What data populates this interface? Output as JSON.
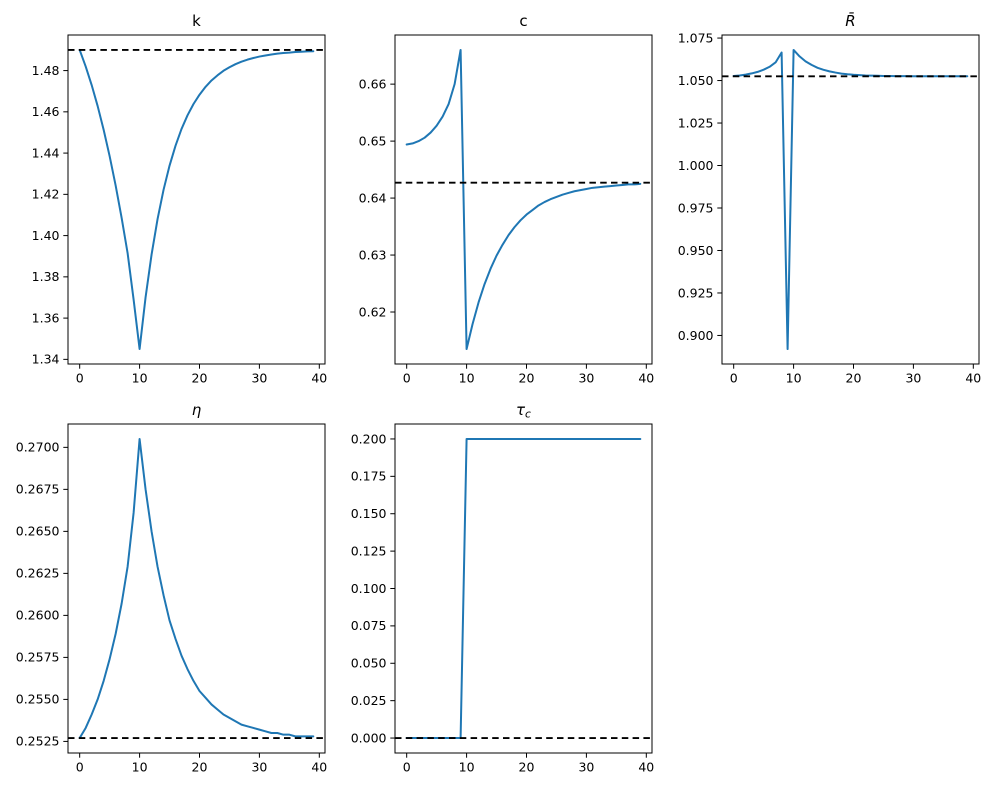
{
  "figure": {
    "background": "#ffffff",
    "rows": 2,
    "cols": 3,
    "empty_cells": 1
  },
  "colors": {
    "line": "#1f77b4",
    "dashed": "#000000",
    "axis": "#000000",
    "text": "#000000",
    "background": "#ffffff"
  },
  "chart_data": [
    {
      "id": "k",
      "type": "line",
      "title": {
        "text": "k",
        "sub": "",
        "italic": false
      },
      "legend": "none",
      "grid": false,
      "xlim": [
        -1.95,
        40.95
      ],
      "ylim": [
        1.33775,
        1.49725
      ],
      "xticks": [
        0,
        10,
        20,
        30,
        40
      ],
      "xtick_labels": [
        "0",
        "10",
        "20",
        "30",
        "40"
      ],
      "yticks": [
        1.34,
        1.36,
        1.38,
        1.4,
        1.42,
        1.44,
        1.46,
        1.48
      ],
      "ytick_labels": [
        "1.34",
        "1.36",
        "1.38",
        "1.40",
        "1.42",
        "1.44",
        "1.46",
        "1.48"
      ],
      "dashed_y": 1.49,
      "x": [
        0,
        1,
        2,
        3,
        4,
        5,
        6,
        7,
        8,
        9,
        10,
        11,
        12,
        13,
        14,
        15,
        16,
        17,
        18,
        19,
        20,
        21,
        22,
        23,
        24,
        25,
        26,
        27,
        28,
        29,
        30,
        31,
        32,
        33,
        34,
        35,
        36,
        37,
        38,
        39
      ],
      "y": [
        1.49,
        1.482,
        1.473,
        1.4628,
        1.4513,
        1.4385,
        1.4243,
        1.4086,
        1.3915,
        1.369,
        1.345,
        1.3701,
        1.3908,
        1.408,
        1.4222,
        1.4339,
        1.4436,
        1.4517,
        1.4583,
        1.4638,
        1.4683,
        1.4721,
        1.4752,
        1.4777,
        1.4799,
        1.4816,
        1.4831,
        1.4843,
        1.4853,
        1.4861,
        1.4868,
        1.4873,
        1.4878,
        1.4882,
        1.4885,
        1.4887,
        1.489,
        1.4891,
        1.4893,
        1.4894
      ]
    },
    {
      "id": "c",
      "type": "line",
      "title": {
        "text": "c",
        "sub": "",
        "italic": false
      },
      "legend": "none",
      "grid": false,
      "xlim": [
        -1.95,
        40.95
      ],
      "ylim": [
        0.610875,
        0.668625
      ],
      "xticks": [
        0,
        10,
        20,
        30,
        40
      ],
      "xtick_labels": [
        "0",
        "10",
        "20",
        "30",
        "40"
      ],
      "yticks": [
        0.62,
        0.63,
        0.64,
        0.65,
        0.66
      ],
      "ytick_labels": [
        "0.62",
        "0.63",
        "0.64",
        "0.65",
        "0.66"
      ],
      "dashed_y": 0.6427,
      "x": [
        0,
        1,
        2,
        3,
        4,
        5,
        6,
        7,
        8,
        9,
        10,
        11,
        12,
        13,
        14,
        15,
        16,
        17,
        18,
        19,
        20,
        21,
        22,
        23,
        24,
        25,
        26,
        27,
        28,
        29,
        30,
        31,
        32,
        33,
        34,
        35,
        36,
        37,
        38,
        39
      ],
      "y": [
        0.6494,
        0.6496,
        0.65,
        0.6506,
        0.6515,
        0.6527,
        0.6543,
        0.6565,
        0.66,
        0.666,
        0.6135,
        0.6179,
        0.6217,
        0.6249,
        0.6276,
        0.6299,
        0.6318,
        0.6335,
        0.6349,
        0.6361,
        0.6371,
        0.6379,
        0.6387,
        0.6393,
        0.6398,
        0.6402,
        0.6406,
        0.6409,
        0.6412,
        0.6414,
        0.6416,
        0.6418,
        0.6419,
        0.642,
        0.6421,
        0.6422,
        0.6423,
        0.6424,
        0.6424,
        0.6425
      ]
    },
    {
      "id": "R-bar",
      "type": "line",
      "title": {
        "text": "R̄",
        "sub": "",
        "italic": true
      },
      "legend": "none",
      "grid": false,
      "xlim": [
        -1.95,
        40.95
      ],
      "ylim": [
        0.8832,
        1.0768
      ],
      "xticks": [
        0,
        10,
        20,
        30,
        40
      ],
      "xtick_labels": [
        "0",
        "10",
        "20",
        "30",
        "40"
      ],
      "yticks": [
        0.9,
        0.925,
        0.95,
        0.975,
        1.0,
        1.025,
        1.05,
        1.075
      ],
      "ytick_labels": [
        "0.900",
        "0.925",
        "0.950",
        "0.975",
        "1.000",
        "1.025",
        "1.050",
        "1.075"
      ],
      "dashed_y": 1.0525,
      "x": [
        0,
        1,
        2,
        3,
        4,
        5,
        6,
        7,
        8,
        9,
        10,
        11,
        12,
        13,
        14,
        15,
        16,
        17,
        18,
        19,
        20,
        21,
        22,
        23,
        24,
        25,
        26,
        27,
        28,
        29,
        30,
        31,
        32,
        33,
        34,
        35,
        36,
        37,
        38,
        39
      ],
      "y": [
        1.0527,
        1.053,
        1.0535,
        1.0542,
        1.0551,
        1.0564,
        1.0581,
        1.0607,
        1.0665,
        0.892,
        1.068,
        1.0642,
        1.0613,
        1.0592,
        1.0575,
        1.0563,
        1.0554,
        1.0547,
        1.0541,
        1.0537,
        1.0534,
        1.0532,
        1.053,
        1.0529,
        1.0528,
        1.0527,
        1.0527,
        1.0526,
        1.0526,
        1.0526,
        1.0525,
        1.0525,
        1.0525,
        1.0525,
        1.0525,
        1.0525,
        1.0525,
        1.0525,
        1.0525,
        1.0525
      ]
    },
    {
      "id": "eta",
      "type": "line",
      "title": {
        "text": "η",
        "sub": "",
        "italic": true
      },
      "legend": "none",
      "grid": false,
      "xlim": [
        -1.95,
        40.95
      ],
      "ylim": [
        0.25181,
        0.27139
      ],
      "xticks": [
        0,
        10,
        20,
        30,
        40
      ],
      "xtick_labels": [
        "0",
        "10",
        "20",
        "30",
        "40"
      ],
      "yticks": [
        0.2525,
        0.255,
        0.2575,
        0.26,
        0.2625,
        0.265,
        0.2675,
        0.27
      ],
      "ytick_labels": [
        "0.2525",
        "0.2550",
        "0.2575",
        "0.2600",
        "0.2625",
        "0.2650",
        "0.2675",
        "0.2700"
      ],
      "dashed_y": 0.2527,
      "x": [
        0,
        1,
        2,
        3,
        4,
        5,
        6,
        7,
        8,
        9,
        10,
        11,
        12,
        13,
        14,
        15,
        16,
        17,
        18,
        19,
        20,
        21,
        22,
        23,
        24,
        25,
        26,
        27,
        28,
        29,
        30,
        31,
        32,
        33,
        34,
        35,
        36,
        37,
        38,
        39
      ],
      "y": [
        0.2527,
        0.2533,
        0.2541,
        0.255,
        0.2561,
        0.2574,
        0.2589,
        0.2607,
        0.2629,
        0.2661,
        0.2705,
        0.2675,
        0.265,
        0.2629,
        0.2612,
        0.2597,
        0.2586,
        0.2576,
        0.2568,
        0.2561,
        0.2555,
        0.2551,
        0.2547,
        0.2544,
        0.2541,
        0.2539,
        0.2537,
        0.2535,
        0.2534,
        0.2533,
        0.2532,
        0.2531,
        0.253,
        0.253,
        0.2529,
        0.2529,
        0.2528,
        0.2528,
        0.2528,
        0.2528
      ]
    },
    {
      "id": "tau-c",
      "type": "line",
      "title": {
        "text": "τ",
        "sub": "c",
        "italic": true
      },
      "legend": "none",
      "grid": false,
      "xlim": [
        -1.95,
        40.95
      ],
      "ylim": [
        -0.01,
        0.21
      ],
      "xticks": [
        0,
        10,
        20,
        30,
        40
      ],
      "xtick_labels": [
        "0",
        "10",
        "20",
        "30",
        "40"
      ],
      "yticks": [
        0.0,
        0.025,
        0.05,
        0.075,
        0.1,
        0.125,
        0.15,
        0.175,
        0.2
      ],
      "ytick_labels": [
        "0.000",
        "0.025",
        "0.050",
        "0.075",
        "0.100",
        "0.125",
        "0.150",
        "0.175",
        "0.200"
      ],
      "dashed_y": 0.0,
      "x": [
        0,
        1,
        2,
        3,
        4,
        5,
        6,
        7,
        8,
        9,
        10,
        11,
        12,
        13,
        14,
        15,
        16,
        17,
        18,
        19,
        20,
        21,
        22,
        23,
        24,
        25,
        26,
        27,
        28,
        29,
        30,
        31,
        32,
        33,
        34,
        35,
        36,
        37,
        38,
        39
      ],
      "y": [
        0.0,
        0.0,
        0.0,
        0.0,
        0.0,
        0.0,
        0.0,
        0.0,
        0.0,
        0.0,
        0.2,
        0.2,
        0.2,
        0.2,
        0.2,
        0.2,
        0.2,
        0.2,
        0.2,
        0.2,
        0.2,
        0.2,
        0.2,
        0.2,
        0.2,
        0.2,
        0.2,
        0.2,
        0.2,
        0.2,
        0.2,
        0.2,
        0.2,
        0.2,
        0.2,
        0.2,
        0.2,
        0.2,
        0.2,
        0.2
      ]
    }
  ]
}
